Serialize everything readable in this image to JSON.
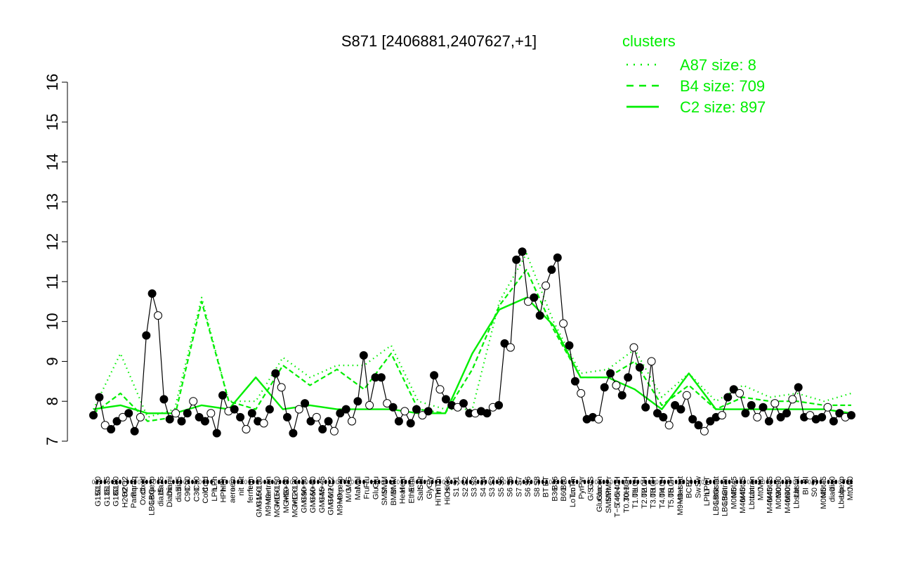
{
  "chart_data": {
    "type": "line",
    "title": "S871 [2406881,2407627,+1]",
    "xlabel": "",
    "ylabel": "",
    "ylim": [
      7,
      16
    ],
    "yticks": [
      7,
      8,
      9,
      10,
      11,
      12,
      13,
      14,
      15,
      16
    ],
    "grid": false,
    "legend_position": "top-right",
    "legend": {
      "title": "clusters",
      "color": "#00ee00",
      "entries": [
        {
          "label": "A87 size: 8",
          "style": "dotted"
        },
        {
          "label": "B4 size: 709",
          "style": "dashed"
        },
        {
          "label": "C2 size: 897",
          "style": "solid"
        }
      ]
    },
    "series": [
      {
        "name": "A87 size: 8",
        "style": "dotted",
        "values": [
          7.8,
          9.2,
          7.6,
          7.8,
          10.6,
          8.0,
          8.0,
          9.1,
          8.6,
          8.9,
          8.9,
          9.4,
          8.0,
          7.8,
          7.8,
          10.5,
          11.7,
          10.0,
          8.7,
          8.8,
          9.3,
          8.1,
          8.7,
          8.0,
          8.4,
          8.1,
          8.2,
          8.0,
          8.2
        ]
      },
      {
        "name": "B4 size: 709",
        "style": "dashed",
        "values": [
          7.7,
          8.2,
          7.5,
          7.6,
          10.5,
          8.0,
          7.8,
          8.9,
          8.4,
          8.8,
          8.3,
          9.2,
          7.8,
          7.7,
          8.8,
          10.4,
          11.3,
          9.8,
          8.6,
          8.6,
          9.0,
          7.9,
          8.4,
          7.8,
          8.1,
          8.0,
          8.0,
          7.9,
          7.9
        ]
      },
      {
        "name": "C2 size: 897",
        "style": "solid",
        "values": [
          7.8,
          7.9,
          7.7,
          7.7,
          7.9,
          7.8,
          8.6,
          7.8,
          7.9,
          7.8,
          7.8,
          7.8,
          7.7,
          7.7,
          9.2,
          10.3,
          10.6,
          9.9,
          8.6,
          8.6,
          8.3,
          7.8,
          8.7,
          7.8,
          7.8,
          7.8,
          7.8,
          7.8,
          7.7
        ]
      }
    ],
    "points": [
      {
        "x": 1,
        "y": 7.65
      },
      {
        "x": 2,
        "y": 8.1
      },
      {
        "x": 3,
        "y": 7.4
      },
      {
        "x": 4,
        "y": 7.3
      },
      {
        "x": 5,
        "y": 7.5
      },
      {
        "x": 6,
        "y": 7.6
      },
      {
        "x": 7,
        "y": 7.7
      },
      {
        "x": 8,
        "y": 7.25
      },
      {
        "x": 9,
        "y": 7.6
      },
      {
        "x": 10,
        "y": 9.65
      },
      {
        "x": 11,
        "y": 10.7
      },
      {
        "x": 12,
        "y": 10.15
      },
      {
        "x": 13,
        "y": 8.05
      },
      {
        "x": 14,
        "y": 7.55
      },
      {
        "x": 15,
        "y": 7.7
      },
      {
        "x": 16,
        "y": 7.5
      },
      {
        "x": 17,
        "y": 7.7
      },
      {
        "x": 18,
        "y": 8.0
      },
      {
        "x": 19,
        "y": 7.6
      },
      {
        "x": 20,
        "y": 7.5
      },
      {
        "x": 21,
        "y": 7.7
      },
      {
        "x": 22,
        "y": 7.2
      },
      {
        "x": 23,
        "y": 8.15
      },
      {
        "x": 24,
        "y": 7.75
      },
      {
        "x": 25,
        "y": 7.8
      },
      {
        "x": 26,
        "y": 7.6
      },
      {
        "x": 27,
        "y": 7.3
      },
      {
        "x": 28,
        "y": 7.7
      },
      {
        "x": 29,
        "y": 7.5
      },
      {
        "x": 30,
        "y": 7.45
      },
      {
        "x": 31,
        "y": 7.8
      },
      {
        "x": 32,
        "y": 8.7
      },
      {
        "x": 33,
        "y": 8.35
      },
      {
        "x": 34,
        "y": 7.6
      },
      {
        "x": 35,
        "y": 7.2
      },
      {
        "x": 36,
        "y": 7.8
      },
      {
        "x": 37,
        "y": 7.95
      },
      {
        "x": 38,
        "y": 7.5
      },
      {
        "x": 39,
        "y": 7.6
      },
      {
        "x": 40,
        "y": 7.3
      },
      {
        "x": 41,
        "y": 7.5
      },
      {
        "x": 42,
        "y": 7.25
      },
      {
        "x": 43,
        "y": 7.7
      },
      {
        "x": 44,
        "y": 7.8
      },
      {
        "x": 45,
        "y": 7.5
      },
      {
        "x": 46,
        "y": 8.0
      },
      {
        "x": 47,
        "y": 9.15
      },
      {
        "x": 48,
        "y": 7.9
      },
      {
        "x": 49,
        "y": 8.6
      },
      {
        "x": 50,
        "y": 8.6
      },
      {
        "x": 51,
        "y": 7.95
      },
      {
        "x": 52,
        "y": 7.85
      },
      {
        "x": 53,
        "y": 7.5
      },
      {
        "x": 54,
        "y": 7.75
      },
      {
        "x": 55,
        "y": 7.45
      },
      {
        "x": 56,
        "y": 7.8
      },
      {
        "x": 57,
        "y": 7.65
      },
      {
        "x": 58,
        "y": 7.75
      },
      {
        "x": 59,
        "y": 8.65
      },
      {
        "x": 60,
        "y": 8.3
      },
      {
        "x": 61,
        "y": 8.05
      },
      {
        "x": 62,
        "y": 7.9
      },
      {
        "x": 63,
        "y": 7.85
      },
      {
        "x": 64,
        "y": 7.95
      },
      {
        "x": 65,
        "y": 7.7
      },
      {
        "x": 66,
        "y": 7.7
      },
      {
        "x": 67,
        "y": 7.75
      },
      {
        "x": 68,
        "y": 7.7
      },
      {
        "x": 69,
        "y": 7.85
      },
      {
        "x": 70,
        "y": 7.9
      },
      {
        "x": 71,
        "y": 9.45
      },
      {
        "x": 72,
        "y": 9.35
      },
      {
        "x": 73,
        "y": 11.55
      },
      {
        "x": 74,
        "y": 11.75
      },
      {
        "x": 75,
        "y": 10.5
      },
      {
        "x": 76,
        "y": 10.6
      },
      {
        "x": 77,
        "y": 10.15
      },
      {
        "x": 78,
        "y": 10.9
      },
      {
        "x": 79,
        "y": 11.3
      },
      {
        "x": 80,
        "y": 11.6
      },
      {
        "x": 81,
        "y": 9.95
      },
      {
        "x": 82,
        "y": 9.4
      },
      {
        "x": 83,
        "y": 8.5
      },
      {
        "x": 84,
        "y": 8.2
      },
      {
        "x": 85,
        "y": 7.55
      },
      {
        "x": 86,
        "y": 7.6
      },
      {
        "x": 87,
        "y": 7.55
      },
      {
        "x": 88,
        "y": 8.35
      },
      {
        "x": 89,
        "y": 8.7
      },
      {
        "x": 90,
        "y": 8.4
      },
      {
        "x": 91,
        "y": 8.15
      },
      {
        "x": 92,
        "y": 8.6
      },
      {
        "x": 93,
        "y": 9.35
      },
      {
        "x": 94,
        "y": 8.85
      },
      {
        "x": 95,
        "y": 7.85
      },
      {
        "x": 96,
        "y": 9.0
      },
      {
        "x": 97,
        "y": 7.7
      },
      {
        "x": 98,
        "y": 7.6
      },
      {
        "x": 99,
        "y": 7.4
      },
      {
        "x": 100,
        "y": 7.9
      },
      {
        "x": 101,
        "y": 7.8
      },
      {
        "x": 102,
        "y": 8.15
      },
      {
        "x": 103,
        "y": 7.55
      },
      {
        "x": 104,
        "y": 7.4
      },
      {
        "x": 105,
        "y": 7.25
      },
      {
        "x": 106,
        "y": 7.5
      },
      {
        "x": 107,
        "y": 7.6
      },
      {
        "x": 108,
        "y": 7.65
      },
      {
        "x": 109,
        "y": 8.1
      },
      {
        "x": 110,
        "y": 8.3
      },
      {
        "x": 111,
        "y": 8.2
      },
      {
        "x": 112,
        "y": 7.7
      },
      {
        "x": 113,
        "y": 7.9
      },
      {
        "x": 114,
        "y": 7.6
      },
      {
        "x": 115,
        "y": 7.85
      },
      {
        "x": 116,
        "y": 7.5
      },
      {
        "x": 117,
        "y": 7.95
      },
      {
        "x": 118,
        "y": 7.6
      },
      {
        "x": 119,
        "y": 7.7
      },
      {
        "x": 120,
        "y": 8.05
      },
      {
        "x": 121,
        "y": 8.35
      },
      {
        "x": 122,
        "y": 7.6
      },
      {
        "x": 123,
        "y": 7.65
      },
      {
        "x": 124,
        "y": 7.55
      },
      {
        "x": 125,
        "y": 7.6
      },
      {
        "x": 126,
        "y": 7.85
      },
      {
        "x": 127,
        "y": 7.5
      },
      {
        "x": 128,
        "y": 7.7
      },
      {
        "x": 129,
        "y": 7.6
      },
      {
        "x": 130,
        "y": 7.65
      }
    ],
    "tick_labels": [
      "G150",
      "G135",
      "G180",
      "H2O2",
      "Paraq",
      "Oxctl",
      "LBGexp",
      "dia15",
      "Diami",
      "dia5",
      "C90",
      "C30",
      "Cold",
      "LPh",
      "HPh",
      "aero",
      "nit",
      "ferm",
      "GM+150",
      "M9−tran",
      "MG+150",
      "MG+90",
      "MG+120",
      "GM+90",
      "GM+60",
      "GM+45",
      "GM+0.2",
      "M9−exp",
      "M/G",
      "Mal",
      "Fru",
      "Glu",
      "SMM",
      "BMM",
      "Heat",
      "Etha",
      "Salt",
      "Gly",
      "HiTm",
      "HiOs",
      "S1",
      "S2",
      "S3",
      "S4",
      "S3",
      "S5",
      "S6",
      "S7",
      "S6",
      "S8",
      "BT",
      "B36",
      "B60",
      "LoTm",
      "Pyr",
      "G/S",
      "Glucon",
      "SMMPr",
      "T−5.40H",
      "T0.30H",
      "T1.0H",
      "T2.0H",
      "T3.0H",
      "T4.0H",
      "T5.0H",
      "M9−stat",
      "BC",
      "Sw",
      "LPhT",
      "LBGstat",
      "LBGtran",
      "M0t45",
      "M40t45",
      "Lbtran",
      "Mt0",
      "M40t45",
      "M0t90",
      "M40t90",
      "Lbstat",
      "BI",
      "S0",
      "M0t45",
      "dia0",
      "Lbexp",
      "Mt0"
    ],
    "colors": {
      "cluster_lines": "#00ee00",
      "data_line": "#000000",
      "point_fill": "#000000"
    }
  }
}
